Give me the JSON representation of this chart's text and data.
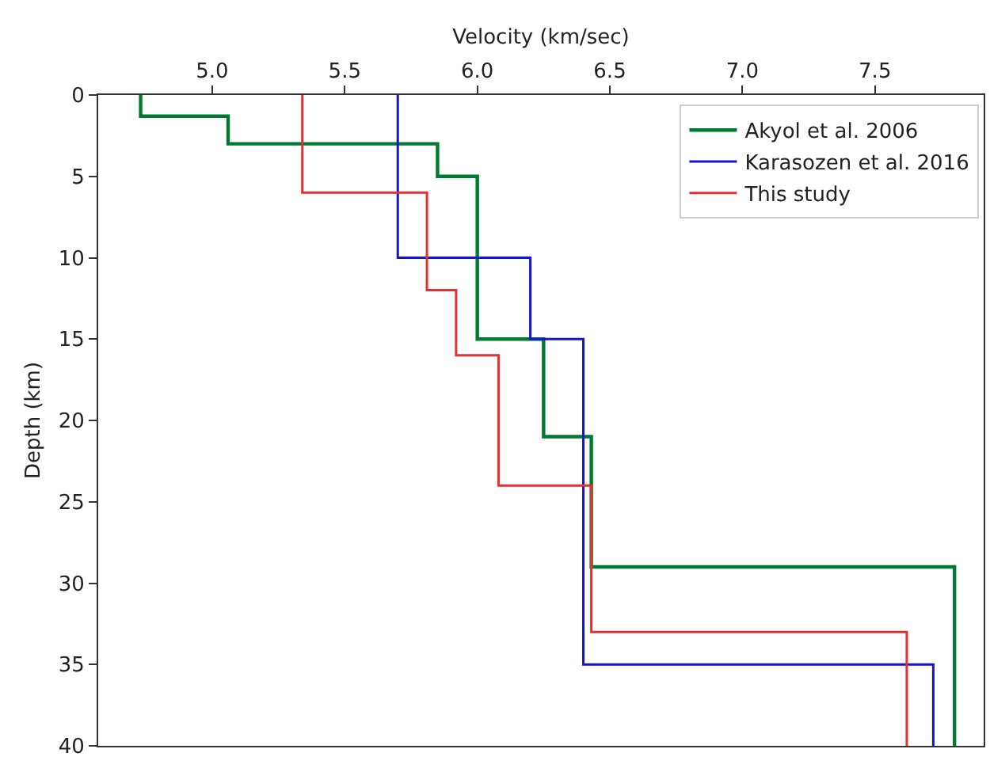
{
  "chart_data": {
    "type": "line",
    "xlabel": "Velocity (km/sec)",
    "ylabel": "Depth (km)",
    "xlim": [
      4.57,
      7.91
    ],
    "xticks": [
      {
        "value": 5.0,
        "label": "5.0"
      },
      {
        "value": 5.5,
        "label": "5.5"
      },
      {
        "value": 6.0,
        "label": "6.0"
      },
      {
        "value": 6.5,
        "label": "6.5"
      },
      {
        "value": 7.0,
        "label": "7.0"
      },
      {
        "value": 7.5,
        "label": "7.5"
      }
    ],
    "ylim": [
      40,
      0
    ],
    "yticks": [
      0,
      5,
      10,
      15,
      20,
      25,
      30,
      35,
      40
    ],
    "legend": "top right",
    "line_style": "solid",
    "marker": "none",
    "series": [
      {
        "name": "Akyol et al. 2006",
        "color": "#007a33",
        "x": [
          4.73,
          4.73,
          5.06,
          5.06,
          5.85,
          5.85,
          6.0,
          6.0,
          6.25,
          6.25,
          6.43,
          6.43,
          7.8,
          7.8
        ],
        "values": [
          0,
          1.3,
          1.3,
          3,
          3,
          5,
          5,
          15,
          15,
          21,
          21,
          29,
          29,
          40
        ]
      },
      {
        "name": "Karasozen et al. 2016",
        "color": "#1414d2",
        "x": [
          5.7,
          5.7,
          6.2,
          6.2,
          6.4,
          6.4,
          7.72,
          7.72
        ],
        "values": [
          0,
          10,
          10,
          15,
          15,
          35,
          35,
          40
        ]
      },
      {
        "name": "This study",
        "color": "#e03232",
        "x": [
          5.34,
          5.34,
          5.81,
          5.81,
          5.92,
          5.92,
          6.08,
          6.08,
          6.43,
          6.43,
          7.62,
          7.62
        ],
        "values": [
          0,
          6,
          6,
          12,
          12,
          16,
          16,
          24,
          24,
          33,
          33,
          40
        ]
      }
    ]
  }
}
